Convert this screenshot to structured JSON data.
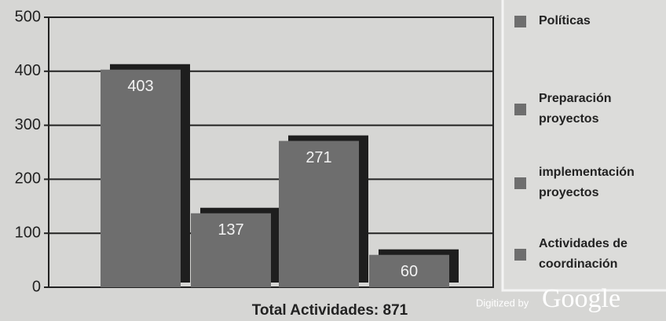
{
  "chart_data": {
    "type": "bar",
    "categories": [
      "Políticas",
      "Preparación proyectos",
      "implementación proyectos",
      "Actividades de coordinación"
    ],
    "values": [
      403,
      137,
      271,
      60
    ],
    "color": "#6e6e6e",
    "shadow_color": "#1e1e1e",
    "ylim": [
      0,
      500
    ],
    "yticks": [
      0,
      100,
      200,
      300,
      400,
      500
    ],
    "grid": true,
    "xlabel": "Total Actividades: 871",
    "legend": "right",
    "watermark": [
      "Digitized by",
      "Google"
    ]
  }
}
